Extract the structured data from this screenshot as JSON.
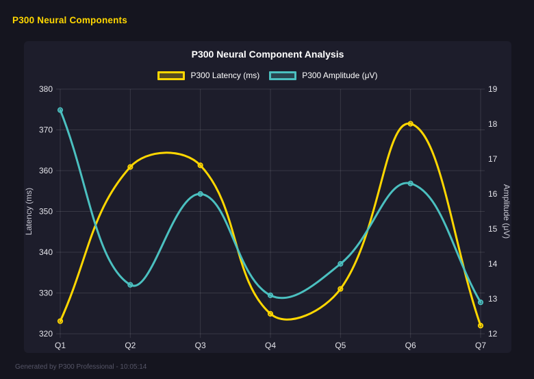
{
  "header": {
    "title": "P300 Neural Components"
  },
  "footer": {
    "text": "Generated by P300 Professional - 10:05:14"
  },
  "colors": {
    "page_background": "#15151f",
    "panel_background": "#1d1d2b",
    "grid": "rgba(255,255,255,0.12)",
    "title_text": "#ffffff",
    "tick_text": "#e4e4ea",
    "axis_title_text": "#c9c9d4",
    "header_text": "#ffd700",
    "footer_text": "#565668"
  },
  "chart_data": {
    "type": "line",
    "title": "P300 Neural Component Analysis",
    "categories": [
      "Q1",
      "Q2",
      "Q3",
      "Q4",
      "Q5",
      "Q6",
      "Q7"
    ],
    "series": [
      {
        "name": "P300 Latency (ms)",
        "yaxis": "left",
        "color": "#ffd700",
        "point_fill": "rgba(255,215,0,0.25)",
        "values": [
          323.1,
          360.9,
          361.3,
          324.9,
          331.0,
          371.5,
          322.0
        ]
      },
      {
        "name": "P300 Amplitude (μV)",
        "yaxis": "right",
        "color": "#4bc0c0",
        "point_fill": "rgba(75,192,192,0.25)",
        "values": [
          18.4,
          13.4,
          16.0,
          13.1,
          14.0,
          16.3,
          12.9
        ]
      }
    ],
    "left_axis": {
      "label": "Latency (ms)",
      "min": 320,
      "max": 380,
      "step": 10
    },
    "right_axis": {
      "label": "Amplitude (μV)",
      "min": 12,
      "max": 19,
      "step": 1
    },
    "grid": true,
    "legend_position": "top",
    "line_tension": 0.4,
    "line_width": 3,
    "point_radius": 3.2
  }
}
